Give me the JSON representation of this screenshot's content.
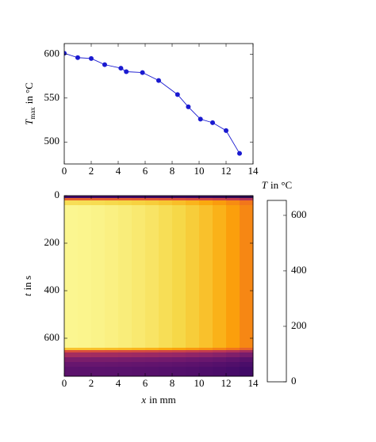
{
  "chart_data": [
    {
      "type": "line",
      "ylabel": [
        "T",
        "max",
        "in °C"
      ],
      "color": "#1a1ad0",
      "x": [
        0,
        1,
        2,
        3,
        4.2,
        4.6,
        5.8,
        7,
        8.4,
        9.2,
        10.1,
        11,
        12,
        13
      ],
      "values": [
        601,
        596,
        595,
        588,
        584,
        580,
        579,
        570,
        554,
        540,
        526,
        522,
        513,
        487
      ],
      "xlim": [
        0,
        14
      ],
      "xticks": [
        0,
        2,
        4,
        6,
        8,
        10,
        12,
        14
      ],
      "ylim": [
        475,
        612
      ],
      "yticks": [
        500,
        550,
        600
      ]
    },
    {
      "type": "heatmap",
      "xlabel": [
        "x",
        "in mm"
      ],
      "ylabel": [
        "t",
        "in s"
      ],
      "colorbar_label": [
        "T",
        "in °C"
      ],
      "colormap": "inferno",
      "xlim": [
        0,
        14
      ],
      "xticks": [
        0,
        2,
        4,
        6,
        8,
        10,
        12,
        14
      ],
      "ylim": [
        760,
        0
      ],
      "yticks": [
        0,
        200,
        400,
        600
      ],
      "clim": [
        0,
        654
      ],
      "cticks": [
        0,
        200,
        400,
        600
      ],
      "x_edges": [
        0,
        1,
        2,
        3,
        4,
        5,
        6,
        7,
        8,
        9,
        10,
        11,
        12,
        13,
        14
      ],
      "y_edges": [
        0,
        10,
        20,
        40,
        100,
        200,
        300,
        400,
        500,
        600,
        640,
        650,
        660,
        680,
        700,
        720,
        760
      ],
      "z": [
        [
          130,
          130,
          130,
          128,
          128,
          126,
          124,
          122,
          120,
          118,
          115,
          110,
          105,
          98
        ],
        [
          420,
          420,
          418,
          415,
          412,
          408,
          402,
          396,
          390,
          380,
          370,
          356,
          340,
          316
        ],
        [
          600,
          598,
          596,
          592,
          588,
          582,
          575,
          566,
          556,
          543,
          529,
          510,
          487,
          454
        ],
        [
          640,
          638,
          635,
          630,
          625,
          618,
          610,
          600,
          590,
          575,
          560,
          540,
          515,
          480
        ],
        [
          640,
          638,
          635,
          630,
          625,
          618,
          610,
          600,
          590,
          575,
          560,
          540,
          515,
          480
        ],
        [
          640,
          638,
          635,
          630,
          625,
          618,
          610,
          600,
          590,
          575,
          560,
          540,
          515,
          480
        ],
        [
          640,
          638,
          635,
          630,
          625,
          618,
          610,
          600,
          590,
          575,
          560,
          540,
          515,
          480
        ],
        [
          640,
          638,
          635,
          630,
          625,
          618,
          610,
          600,
          590,
          575,
          560,
          540,
          515,
          480
        ],
        [
          640,
          638,
          635,
          630,
          625,
          618,
          610,
          600,
          590,
          575,
          560,
          540,
          515,
          480
        ],
        [
          640,
          638,
          635,
          630,
          625,
          618,
          610,
          600,
          590,
          575,
          560,
          540,
          515,
          480
        ],
        [
          563,
          561,
          559,
          554,
          550,
          544,
          537,
          528,
          519,
          506,
          493,
          475,
          453,
          422
        ],
        [
          384,
          383,
          381,
          378,
          375,
          371,
          366,
          360,
          354,
          345,
          336,
          324,
          309,
          288
        ],
        [
          288,
          287,
          286,
          284,
          281,
          278,
          275,
          270,
          266,
          259,
          252,
          243,
          232,
          216
        ],
        [
          224,
          223,
          222,
          221,
          219,
          216,
          214,
          210,
          207,
          201,
          196,
          189,
          180,
          168
        ],
        [
          192,
          191,
          191,
          189,
          188,
          185,
          183,
          180,
          177,
          173,
          168,
          162,
          155,
          144
        ],
        [
          173,
          172,
          171,
          170,
          169,
          167,
          165,
          162,
          159,
          155,
          151,
          146,
          139,
          130
        ]
      ]
    }
  ]
}
